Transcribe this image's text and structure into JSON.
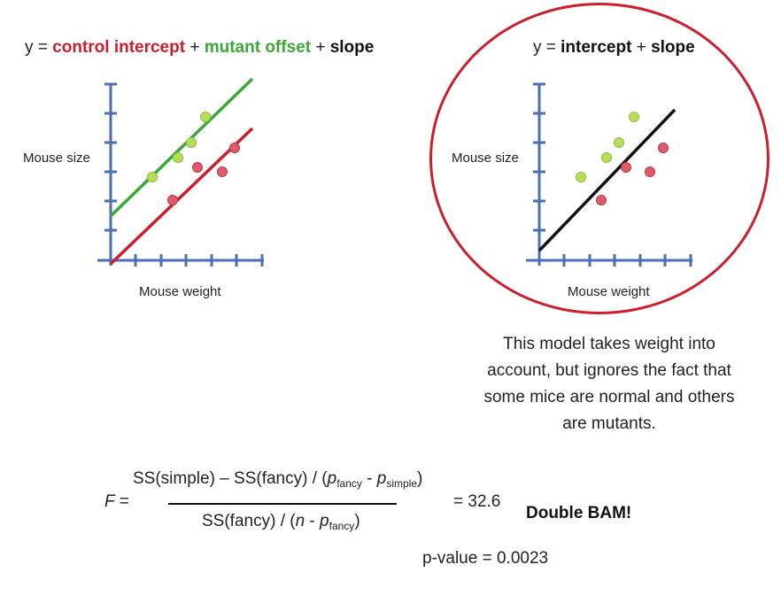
{
  "left_model": {
    "equation_prefix": "y = ",
    "term_control_intercept": "control intercept",
    "plus_1": " + ",
    "term_mutant_offset": "mutant offset",
    "plus_2": " + ",
    "term_slope": "slope",
    "ylabel": "Mouse size",
    "xlabel": "Mouse weight"
  },
  "right_model": {
    "equation_prefix": "y = ",
    "term_intercept": "intercept",
    "plus": " + ",
    "term_slope": "slope",
    "ylabel": "Mouse size",
    "xlabel": "Mouse weight",
    "caption": "This model takes weight into account, but ignores the fact that some mice are normal and others are mutants."
  },
  "formula": {
    "lhs": "F =",
    "numerator_a": "SS(simple) – SS(fancy) / (",
    "p": "p",
    "sub_fancy": "fancy",
    "minus": " - ",
    "sub_simple": "simple",
    "close": ")",
    "denominator_a": "SS(fancy) / (",
    "n": "n",
    "den_minus": " - ",
    "result": "= 32.6",
    "exclaim": "Double BAM!",
    "pvalue": "p-value = 0.0023"
  },
  "colors": {
    "control": "#cc1f2e",
    "mutant": "#3aa935",
    "axis": "#4a6fb5",
    "fit": "#111111"
  }
}
